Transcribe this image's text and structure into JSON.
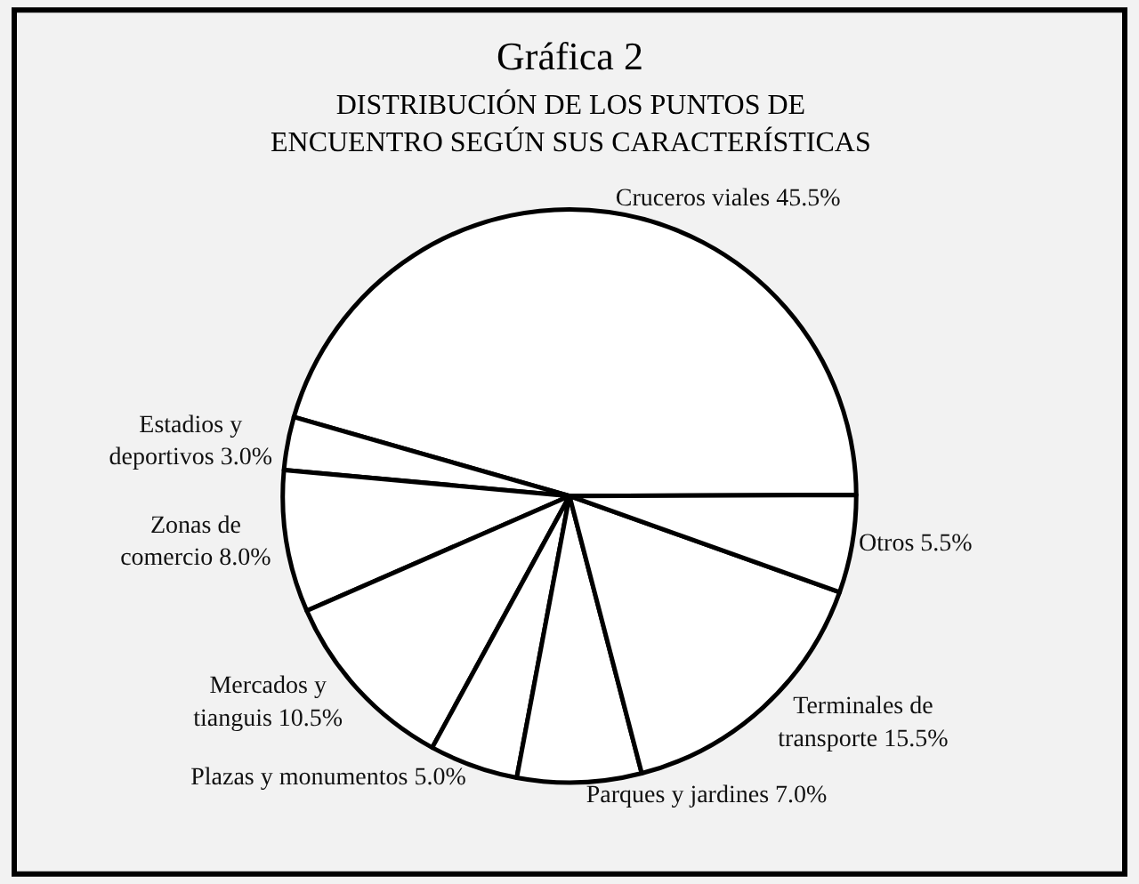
{
  "chart_data": {
    "type": "pie",
    "title": "Gráfica 2",
    "subtitle": "DISTRIBUCIÓN DE LOS PUNTOS DE ENCUENTRO SEGÚN SUS CARACTERÍSTICAS",
    "categories": [
      "Cruceros viales",
      "Estadios y deportivos",
      "Zonas de comercio",
      "Mercados y tianguis",
      "Plazas y monumentos",
      "Parques y jardines",
      "Terminales de transporte",
      "Otros"
    ],
    "values": [
      45.5,
      3.0,
      8.0,
      10.5,
      5.0,
      7.0,
      15.5,
      5.5
    ],
    "value_labels": [
      "45.5%",
      "3.0%",
      "8.0%",
      "10.5%",
      "5.0%",
      "7.0%",
      "15.5%",
      "5.5%"
    ],
    "colors": [
      "#ffffff",
      "#ffffff",
      "#ffffff",
      "#ffffff",
      "#ffffff",
      "#ffffff",
      "#ffffff",
      "#ffffff"
    ],
    "legend": false
  }
}
